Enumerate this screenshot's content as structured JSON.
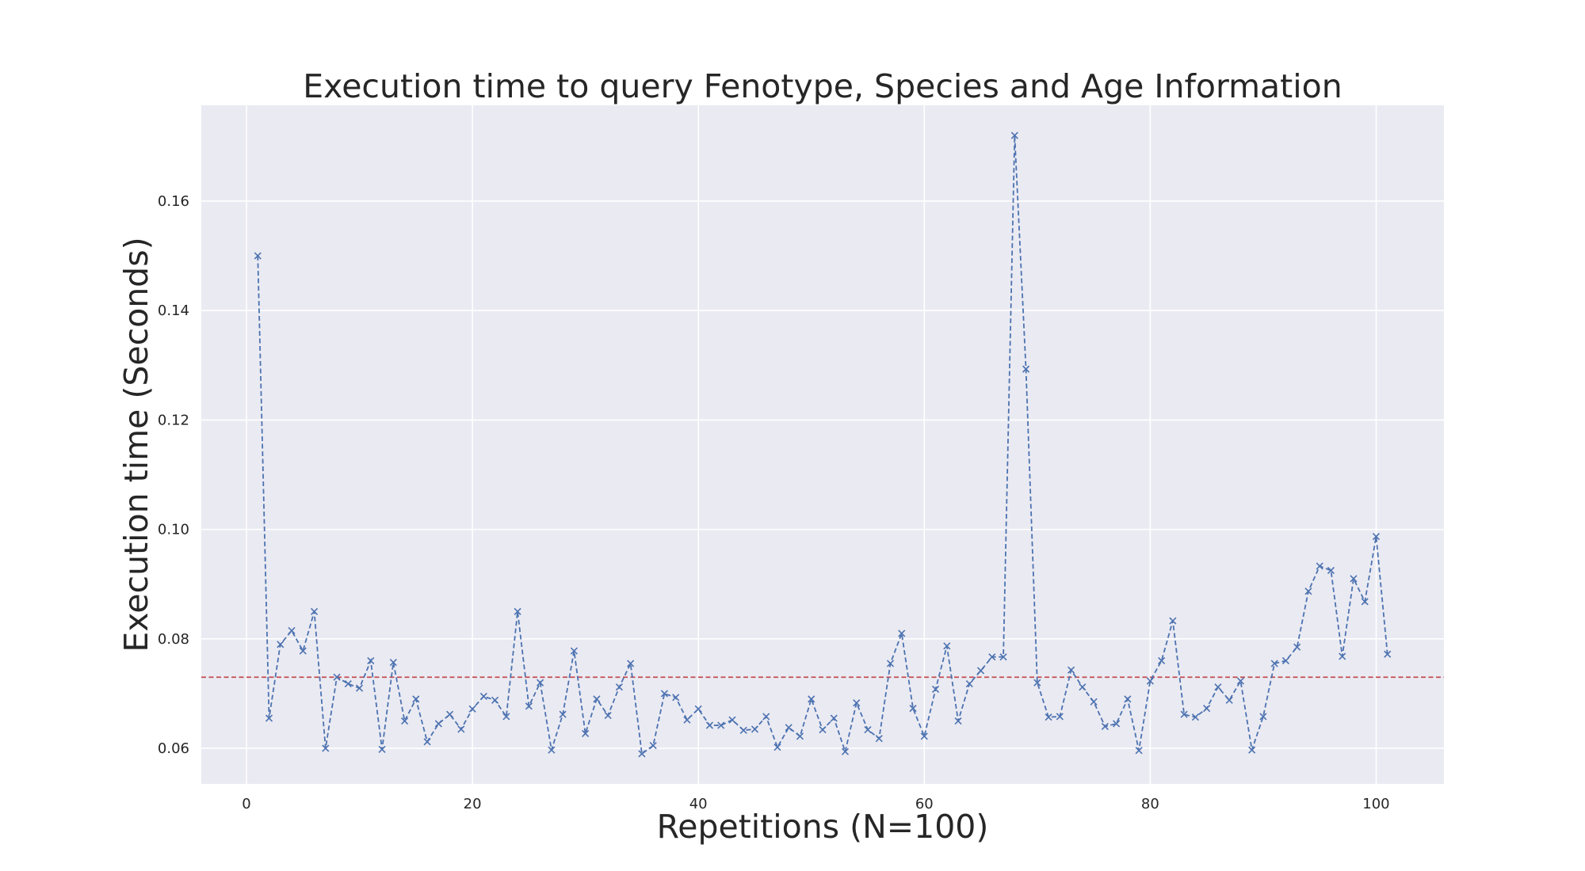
{
  "chart_data": {
    "type": "line",
    "title": "Execution time to query Fenotype, Species and Age Information",
    "xlabel": "Repetitions (N=100)",
    "ylabel": "Execution time (Seconds)",
    "xlim": [
      -4,
      106
    ],
    "ylim": [
      0.0535,
      0.1775
    ],
    "xticks": [
      0,
      20,
      40,
      60,
      80,
      100
    ],
    "xtick_labels": [
      "0",
      "20",
      "40",
      "60",
      "80",
      "100"
    ],
    "yticks": [
      0.06,
      0.08,
      0.1,
      0.12,
      0.14,
      0.16
    ],
    "ytick_labels": [
      "0.06",
      "0.08",
      "0.10",
      "0.12",
      "0.14",
      "0.16"
    ],
    "grid": true,
    "background_color": "#eaeaf2",
    "series": [
      {
        "style": "dashed line with x markers",
        "color": "#4c72b0",
        "x": [
          1,
          2,
          3,
          4,
          5,
          6,
          7,
          8,
          9,
          10,
          11,
          12,
          13,
          14,
          15,
          16,
          17,
          18,
          19,
          20,
          21,
          22,
          23,
          24,
          25,
          26,
          27,
          28,
          29,
          30,
          31,
          32,
          33,
          34,
          35,
          36,
          37,
          38,
          39,
          40,
          41,
          42,
          43,
          44,
          45,
          46,
          47,
          48,
          49,
          50,
          51,
          52,
          53,
          54,
          55,
          56,
          57,
          58,
          59,
          60,
          61,
          62,
          63,
          64,
          65,
          66,
          67,
          68,
          69,
          70,
          71,
          72,
          73,
          74,
          75,
          76,
          77,
          78,
          79,
          80,
          81,
          82,
          83,
          84,
          85,
          86,
          87,
          88,
          89,
          90,
          91,
          92,
          93,
          94,
          95,
          96,
          97,
          98,
          99,
          100,
          101
        ],
        "y": [
          0.15,
          0.0655,
          0.079,
          0.0815,
          0.0778,
          0.085,
          0.06,
          0.073,
          0.0718,
          0.071,
          0.076,
          0.0598,
          0.0757,
          0.065,
          0.069,
          0.0612,
          0.0645,
          0.0662,
          0.0635,
          0.0672,
          0.0695,
          0.0688,
          0.0658,
          0.085,
          0.0677,
          0.072,
          0.0597,
          0.0662,
          0.0778,
          0.0627,
          0.069,
          0.066,
          0.0712,
          0.0755,
          0.059,
          0.0605,
          0.07,
          0.0693,
          0.0652,
          0.0672,
          0.0642,
          0.0642,
          0.0652,
          0.0633,
          0.0635,
          0.0658,
          0.0602,
          0.0638,
          0.0622,
          0.069,
          0.0634,
          0.0655,
          0.0594,
          0.0683,
          0.0634,
          0.0618,
          0.0755,
          0.081,
          0.0673,
          0.0622,
          0.0708,
          0.0787,
          0.065,
          0.0718,
          0.0742,
          0.0767,
          0.0767,
          0.172,
          0.1293,
          0.072,
          0.0657,
          0.0658,
          0.0743,
          0.0712,
          0.0685,
          0.064,
          0.0645,
          0.069,
          0.0596,
          0.0723,
          0.076,
          0.0833,
          0.0662,
          0.0657,
          0.0673,
          0.0712,
          0.0688,
          0.0723,
          0.0597,
          0.0658,
          0.0755,
          0.076,
          0.0785,
          0.0887,
          0.0933,
          0.0925,
          0.0768,
          0.091,
          0.0868,
          0.0987,
          0.0772
        ]
      }
    ],
    "reference_lines": [
      {
        "orientation": "horizontal",
        "y": 0.073,
        "style": "dashed",
        "color": "#c44e52"
      }
    ]
  }
}
